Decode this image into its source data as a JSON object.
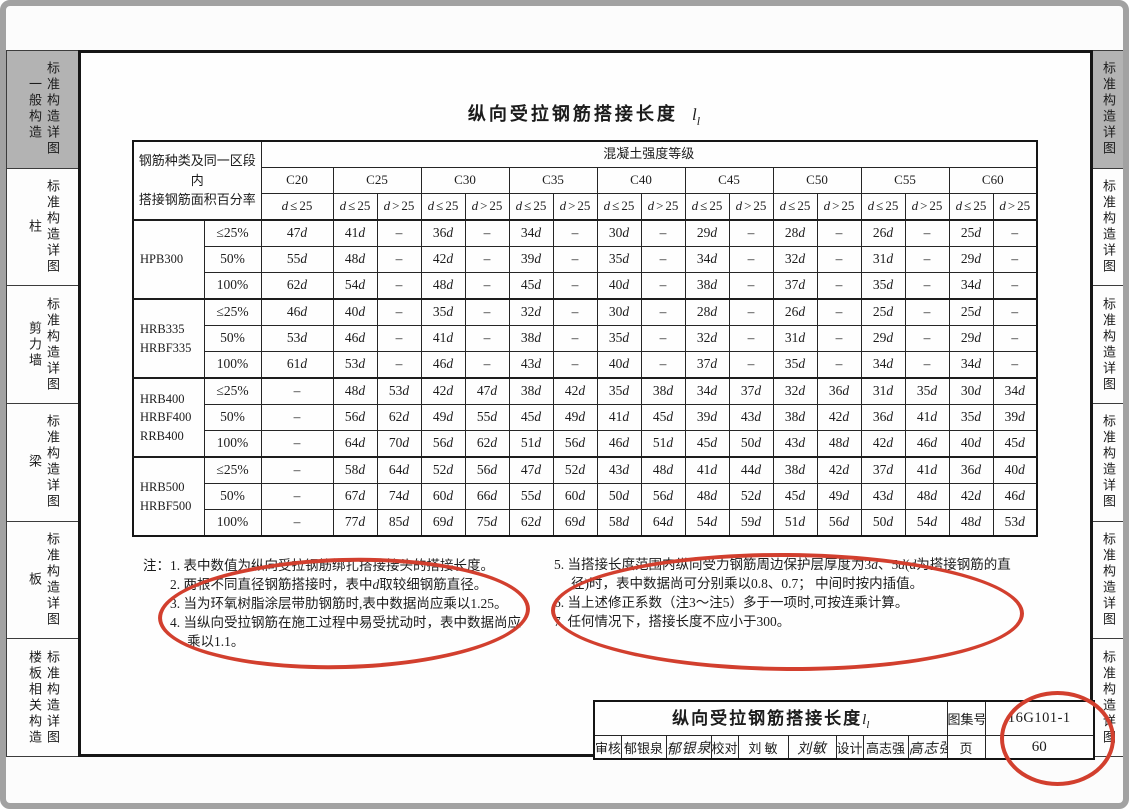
{
  "doc": {
    "title": "纵向受拉钢筋搭接长度",
    "title_var": "l",
    "title_sub": "l"
  },
  "sidebar_left": [
    {
      "category": "一般构造",
      "series": "标准构造详图",
      "selected": true
    },
    {
      "category": "柱",
      "series": "标准构造详图",
      "selected": false
    },
    {
      "category": "剪力墙",
      "series": "标准构造详图",
      "selected": false
    },
    {
      "category": "梁",
      "series": "标准构造详图",
      "selected": false
    },
    {
      "category": "板",
      "series": "标准构造详图",
      "selected": false
    },
    {
      "category": "楼板相关构造",
      "series": "标准构造详图",
      "selected": false
    }
  ],
  "sidebar_right": [
    {
      "label": "标准构造详图",
      "selected": true
    },
    {
      "label": "标准构造详图",
      "selected": false
    },
    {
      "label": "标准构造详图",
      "selected": false
    },
    {
      "label": "标准构造详图",
      "selected": false
    },
    {
      "label": "标准构造详图",
      "selected": false
    },
    {
      "label": "标准构造详图",
      "selected": false
    }
  ],
  "table": {
    "corner_lines": [
      "钢筋种类及同一区段内",
      "搭接钢筋面积百分率"
    ],
    "top_header": "混凝土强度等级",
    "grades": [
      {
        "name": "C20",
        "subs": [
          "d≤25"
        ]
      },
      {
        "name": "C25",
        "subs": [
          "d≤25",
          "d>25"
        ]
      },
      {
        "name": "C30",
        "subs": [
          "d≤25",
          "d>25"
        ]
      },
      {
        "name": "C35",
        "subs": [
          "d≤25",
          "d>25"
        ]
      },
      {
        "name": "C40",
        "subs": [
          "d≤25",
          "d>25"
        ]
      },
      {
        "name": "C45",
        "subs": [
          "d≤25",
          "d>25"
        ]
      },
      {
        "name": "C50",
        "subs": [
          "d≤25",
          "d>25"
        ]
      },
      {
        "name": "C55",
        "subs": [
          "d≤25",
          "d>25"
        ]
      },
      {
        "name": "C60",
        "subs": [
          "d≤25",
          "d>25"
        ]
      }
    ],
    "groups": [
      {
        "types": [
          "HPB300"
        ],
        "rows": [
          {
            "pct": "≤25%",
            "values": [
              "47d",
              "41d",
              "–",
              "36d",
              "–",
              "34d",
              "–",
              "30d",
              "–",
              "29d",
              "–",
              "28d",
              "–",
              "26d",
              "–",
              "25d",
              "–"
            ]
          },
          {
            "pct": "50%",
            "values": [
              "55d",
              "48d",
              "–",
              "42d",
              "–",
              "39d",
              "–",
              "35d",
              "–",
              "34d",
              "–",
              "32d",
              "–",
              "31d",
              "–",
              "29d",
              "–"
            ]
          },
          {
            "pct": "100%",
            "values": [
              "62d",
              "54d",
              "–",
              "48d",
              "–",
              "45d",
              "–",
              "40d",
              "–",
              "38d",
              "–",
              "37d",
              "–",
              "35d",
              "–",
              "34d",
              "–"
            ]
          }
        ]
      },
      {
        "types": [
          "HRB335",
          "HRBF335"
        ],
        "rows": [
          {
            "pct": "≤25%",
            "values": [
              "46d",
              "40d",
              "–",
              "35d",
              "–",
              "32d",
              "–",
              "30d",
              "–",
              "28d",
              "–",
              "26d",
              "–",
              "25d",
              "–",
              "25d",
              "–"
            ]
          },
          {
            "pct": "50%",
            "values": [
              "53d",
              "46d",
              "–",
              "41d",
              "–",
              "38d",
              "–",
              "35d",
              "–",
              "32d",
              "–",
              "31d",
              "–",
              "29d",
              "–",
              "29d",
              "–"
            ]
          },
          {
            "pct": "100%",
            "values": [
              "61d",
              "53d",
              "–",
              "46d",
              "–",
              "43d",
              "–",
              "40d",
              "–",
              "37d",
              "–",
              "35d",
              "–",
              "34d",
              "–",
              "34d",
              "–"
            ]
          }
        ]
      },
      {
        "types": [
          "HRB400",
          "HRBF400",
          "RRB400"
        ],
        "rows": [
          {
            "pct": "≤25%",
            "values": [
              "–",
              "48d",
              "53d",
              "42d",
              "47d",
              "38d",
              "42d",
              "35d",
              "38d",
              "34d",
              "37d",
              "32d",
              "36d",
              "31d",
              "35d",
              "30d",
              "34d"
            ]
          },
          {
            "pct": "50%",
            "values": [
              "–",
              "56d",
              "62d",
              "49d",
              "55d",
              "45d",
              "49d",
              "41d",
              "45d",
              "39d",
              "43d",
              "38d",
              "42d",
              "36d",
              "41d",
              "35d",
              "39d"
            ]
          },
          {
            "pct": "100%",
            "values": [
              "–",
              "64d",
              "70d",
              "56d",
              "62d",
              "51d",
              "56d",
              "46d",
              "51d",
              "45d",
              "50d",
              "43d",
              "48d",
              "42d",
              "46d",
              "40d",
              "45d"
            ]
          }
        ]
      },
      {
        "types": [
          "HRB500",
          "HRBF500"
        ],
        "rows": [
          {
            "pct": "≤25%",
            "values": [
              "–",
              "58d",
              "64d",
              "52d",
              "56d",
              "47d",
              "52d",
              "43d",
              "48d",
              "41d",
              "44d",
              "38d",
              "42d",
              "37d",
              "41d",
              "36d",
              "40d"
            ]
          },
          {
            "pct": "50%",
            "values": [
              "–",
              "67d",
              "74d",
              "60d",
              "66d",
              "55d",
              "60d",
              "50d",
              "56d",
              "48d",
              "52d",
              "45d",
              "49d",
              "43d",
              "48d",
              "42d",
              "46d"
            ]
          },
          {
            "pct": "100%",
            "values": [
              "–",
              "77d",
              "85d",
              "69d",
              "75d",
              "62d",
              "69d",
              "58d",
              "64d",
              "54d",
              "59d",
              "51d",
              "56d",
              "50d",
              "54d",
              "48d",
              "53d"
            ]
          }
        ]
      }
    ]
  },
  "notes_left": [
    "注：1. 表中数值为纵向受拉钢筋绑扎搭接接头的搭接长度。",
    "2. 两根不同直径钢筋搭接时，表中d取较细钢筋直径。",
    "3. 当为环氧树脂涂层带肋钢筋时,表中数据尚应乘以1.25。",
    "4. 当纵向受拉钢筋在施工过程中易受扰动时，表中数据尚应乘以1.1。"
  ],
  "notes_right": [
    "5. 当搭接长度范围内纵向受力钢筋周边保护层厚度为3d、5d(d为搭接钢筋的直径)时，表中数据尚可分别乘以0.8、0.7； 中间时按内插值。",
    "6. 当上述修正系数（注3～注5）多于一项时,可按连乘计算。",
    "7. 任何情况下，搭接长度不应小于300。"
  ],
  "titleblock": {
    "title": "纵向受拉钢筋搭接长度",
    "title_var": "l",
    "title_sub": "l",
    "atlas_label": "图集号",
    "atlas_no": "16G101-1",
    "page_label": "页",
    "page_no": "60",
    "credits": [
      {
        "label": "审核",
        "name": "郁银泉",
        "sig": "郁银泉"
      },
      {
        "label": "校对",
        "name": "刘  敏",
        "sig": "刘敏"
      },
      {
        "label": "设计",
        "name": "高志强",
        "sig": "高志强"
      }
    ]
  },
  "colors": {
    "annotation_red": "#d23f2e",
    "selected_tab_gray": "#b3b3b3",
    "frame_black": "#161616"
  }
}
